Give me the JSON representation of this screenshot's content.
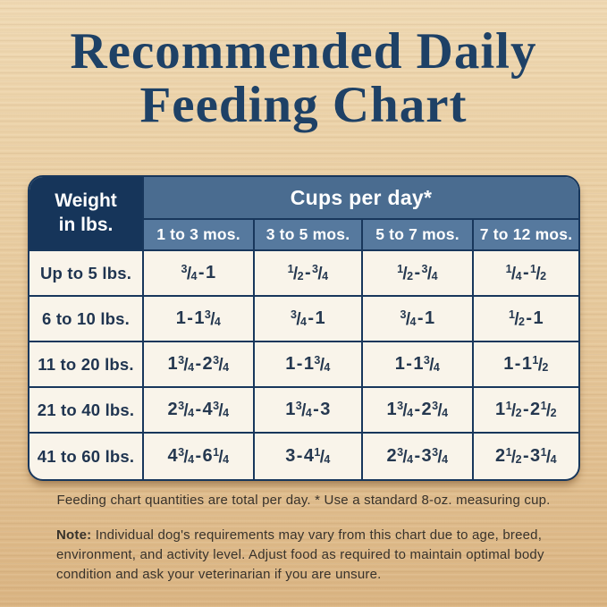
{
  "title": {
    "line1": "Recommended Daily",
    "line2": "Feeding Chart"
  },
  "chart_data": {
    "type": "table",
    "title": "Recommended Daily Feeding Chart",
    "corner_header": {
      "line1": "Weight",
      "line2": "in lbs."
    },
    "column_group_header": "Cups per day*",
    "columns": [
      "1 to 3 mos.",
      "3 to 5 mos.",
      "5 to 7 mos.",
      "7 to 12 mos."
    ],
    "rows": [
      {
        "weight": "Up to 5 lbs.",
        "cups_per_day": [
          "3/4 - 1",
          "1/2 - 3/4",
          "1/2 - 3/4",
          "1/4 - 1/2"
        ]
      },
      {
        "weight": "6 to 10 lbs.",
        "cups_per_day": [
          "1 - 1 3/4",
          "3/4 - 1",
          "3/4 - 1",
          "1/2 - 1"
        ]
      },
      {
        "weight": "11 to 20 lbs.",
        "cups_per_day": [
          "1 3/4 - 2 3/4",
          "1 - 1 3/4",
          "1 - 1 3/4",
          "1 - 1 1/2"
        ]
      },
      {
        "weight": "21 to 40 lbs.",
        "cups_per_day": [
          "2 3/4 - 4 3/4",
          "1 3/4 - 3",
          "1 3/4 - 2 3/4",
          "1 1/2 - 2 1/2"
        ]
      },
      {
        "weight": "41 to 60 lbs.",
        "cups_per_day": [
          "4 3/4 - 6 1/4",
          "3 - 4 1/4",
          "2 3/4 - 3 3/4",
          "2 1/2 - 3 1/4"
        ]
      }
    ]
  },
  "footnotes": {
    "per_day": "Feeding chart quantities are total per day. * Use a standard 8-oz. measuring cup.",
    "note_label": "Note:",
    "note_body": "Individual dog's requirements may vary from this chart due to age, breed, environment, and activity level. Adjust food as required to maintain optimal body condition and ask your veterinarian if you are unsure."
  },
  "colors": {
    "title_navy": "#1e4166",
    "header_navy": "#16355a",
    "header_steel_blue": "#4a6c90",
    "header_steel_blue_light": "#56799e",
    "table_background": "#f9f4ea",
    "grid_line_navy": "#18375c",
    "cell_text_navy": "#253850",
    "footnote_text": "#38322b",
    "wood_light": "#f0dab4",
    "wood_dark": "#dbb583"
  }
}
